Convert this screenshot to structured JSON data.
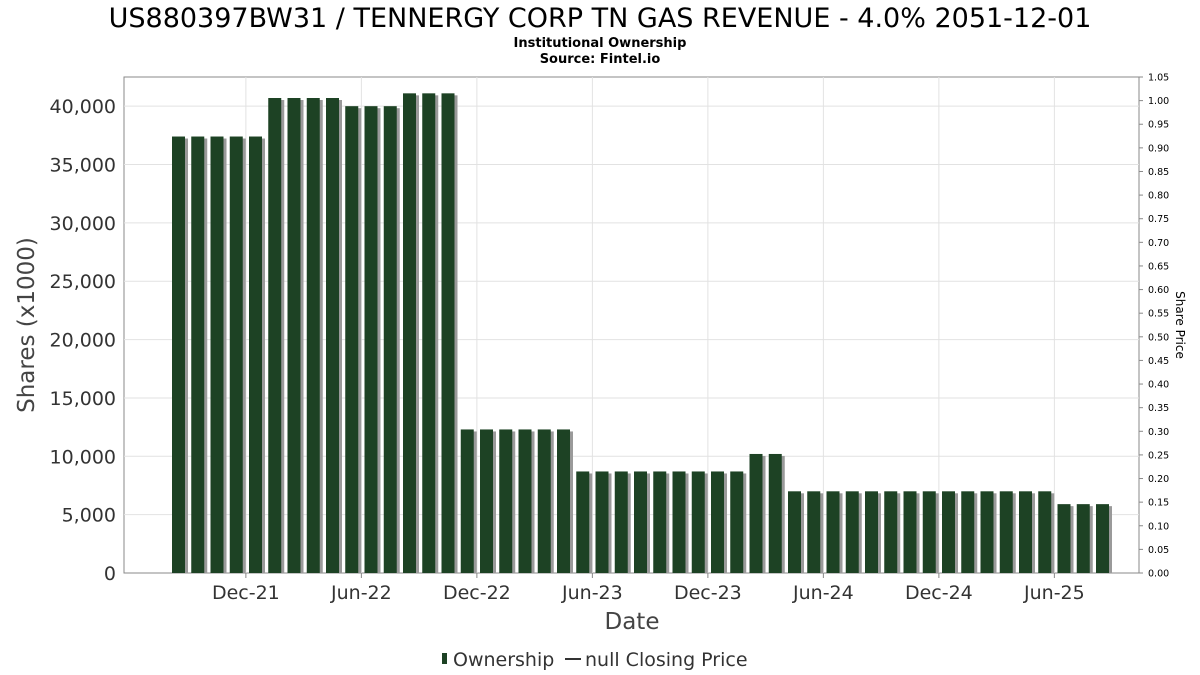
{
  "chart_data": {
    "type": "bar",
    "title": "US880397BW31 / TENNERGY CORP TN GAS REVENUE - 4.0% 2051-12-01",
    "subtitle": "Institutional Ownership",
    "source": "Source: Fintel.io",
    "xlabel": "Date",
    "ylabel": "Shares (x1000)",
    "y2label": "Share Price",
    "ylim": [
      0,
      42500
    ],
    "y2lim": [
      0,
      1.05
    ],
    "yticks": [
      "0",
      "5,000",
      "10,000",
      "15,000",
      "20,000",
      "25,000",
      "30,000",
      "35,000",
      "40,000"
    ],
    "y2ticks": [
      "0.00",
      "0.05",
      "0.10",
      "0.15",
      "0.20",
      "0.25",
      "0.30",
      "0.35",
      "0.40",
      "0.45",
      "0.50",
      "0.55",
      "0.60",
      "0.65",
      "0.70",
      "0.75",
      "0.80",
      "0.85",
      "0.90",
      "0.95",
      "1.00",
      "1.05"
    ],
    "xticks": [
      "Dec-21",
      "Jun-22",
      "Dec-22",
      "Jun-23",
      "Dec-23",
      "Jun-24",
      "Dec-24",
      "Jun-25"
    ],
    "series": [
      {
        "name": "Ownership",
        "color": "#1d4224",
        "values": [
          37400,
          37400,
          37400,
          37400,
          37400,
          40700,
          40700,
          40700,
          40700,
          40000,
          40000,
          40000,
          41100,
          41100,
          41100,
          12300,
          12300,
          12300,
          12300,
          12300,
          12300,
          8700,
          8700,
          8700,
          8700,
          8700,
          8700,
          8700,
          8700,
          8700,
          10200,
          10200,
          7000,
          7000,
          7000,
          7000,
          7000,
          7000,
          7000,
          7000,
          7000,
          7000,
          7000,
          7000,
          7000,
          7000,
          5900,
          5900,
          5900
        ]
      }
    ],
    "legend": [
      {
        "label": "Ownership",
        "color": "#1d4224"
      },
      {
        "label": "null Closing Price",
        "color": "#333333"
      }
    ]
  }
}
